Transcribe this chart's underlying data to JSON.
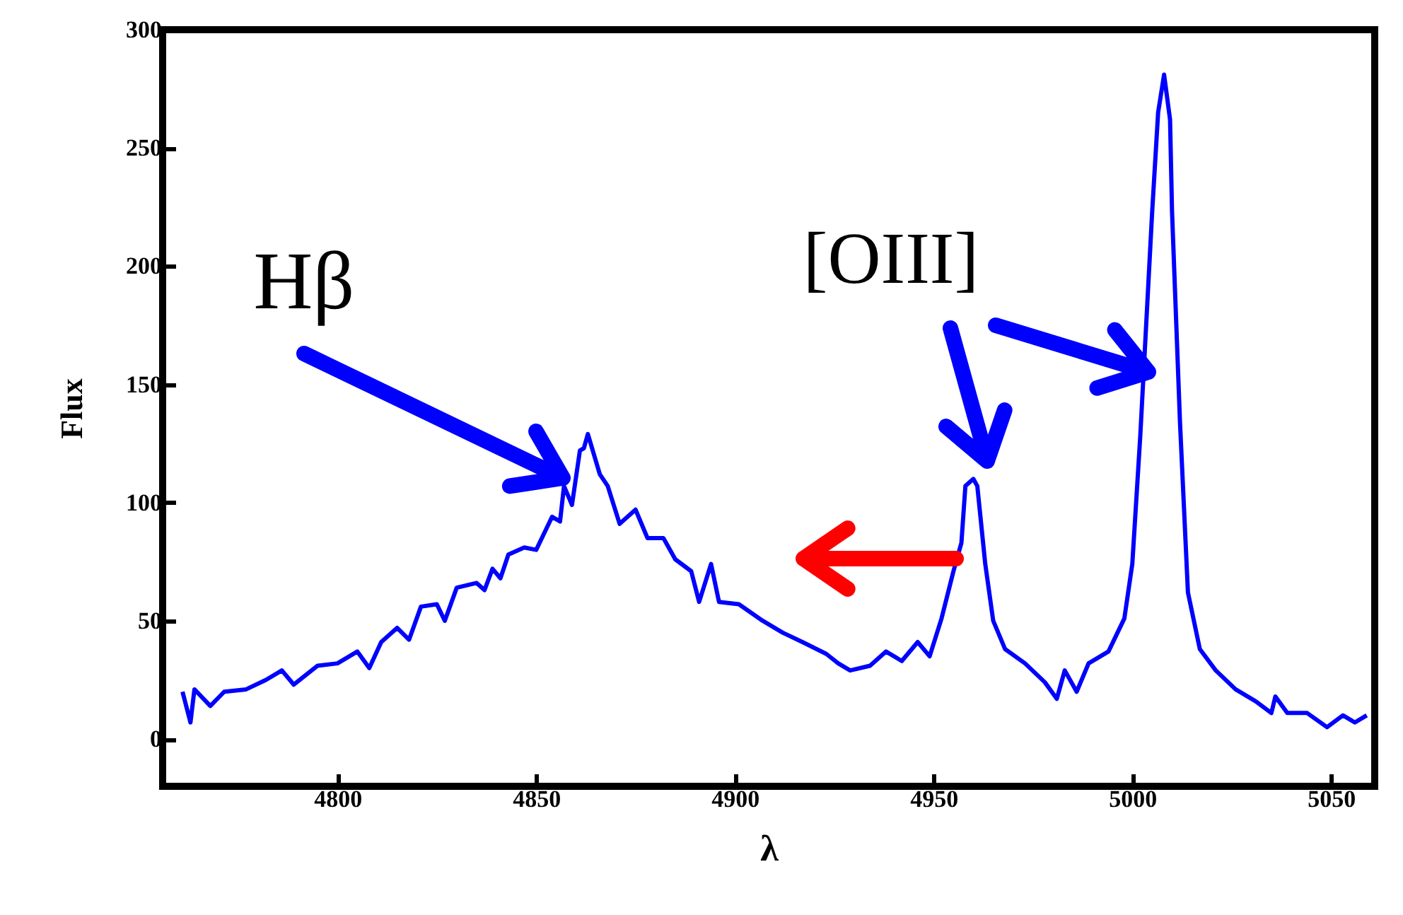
{
  "chart_data": {
    "type": "line",
    "xlabel": "λ",
    "ylabel": "Flux",
    "xlim": [
      4756,
      5061
    ],
    "ylim": [
      -20,
      300
    ],
    "xticks": [
      4800,
      4850,
      4900,
      4950,
      5000,
      5050
    ],
    "yticks": [
      0,
      50,
      100,
      150,
      200,
      250,
      300
    ],
    "grid": false,
    "marker": "none",
    "line_style": "solid",
    "annotations": [
      "Hβ",
      "[OIII]"
    ],
    "series": [
      {
        "color": "#0000ff",
        "x": [
          4761,
          4763,
          4764,
          4768,
          4771.5,
          4777,
          4782,
          4786,
          4789,
          4795,
          4800,
          4805,
          4808,
          4811,
          4815,
          4818,
          4821,
          4825,
          4827,
          4830,
          4835,
          4837,
          4839,
          4841,
          4843,
          4847,
          4850,
          4854,
          4856,
          4857,
          4859,
          4861,
          4862,
          4863,
          4866,
          4868,
          4871,
          4875,
          4878,
          4882,
          4885,
          4889,
          4891,
          4894,
          4896,
          4901,
          4907,
          4912,
          4917,
          4923,
          4926,
          4929,
          4934,
          4938,
          4942,
          4946,
          4949,
          4952,
          4955,
          4957,
          4958,
          4960,
          4961,
          4963,
          4965,
          4968,
          4973,
          4978,
          4981,
          4983,
          4986,
          4989,
          4994,
          4998,
          5000,
          5002,
          5005,
          5006.5,
          5008,
          5009.5,
          5010,
          5012,
          5014,
          5017,
          5021,
          5026,
          5031,
          5035,
          5036,
          5039,
          5044,
          5049,
          5053,
          5056,
          5059
        ],
        "values": [
          20,
          7,
          21,
          14,
          20,
          21,
          25,
          29,
          23,
          31,
          32,
          37,
          30,
          41,
          47,
          42,
          56,
          57,
          50,
          64,
          66,
          63,
          72,
          68,
          78,
          81,
          80,
          94,
          92,
          107,
          99,
          122,
          123,
          129,
          112,
          107,
          91,
          97,
          85,
          85,
          76,
          71,
          58,
          74,
          58,
          57,
          50,
          45,
          41,
          36,
          32,
          29,
          31,
          37,
          33,
          41,
          35,
          51,
          71,
          83,
          107,
          110,
          107,
          74,
          50,
          38,
          32,
          24,
          17,
          29,
          20,
          32,
          37,
          51,
          74,
          128,
          223,
          265,
          281,
          262,
          223,
          134,
          62,
          38,
          29,
          21,
          16,
          11,
          18,
          11,
          11,
          5,
          10,
          7,
          10
        ]
      }
    ]
  }
}
